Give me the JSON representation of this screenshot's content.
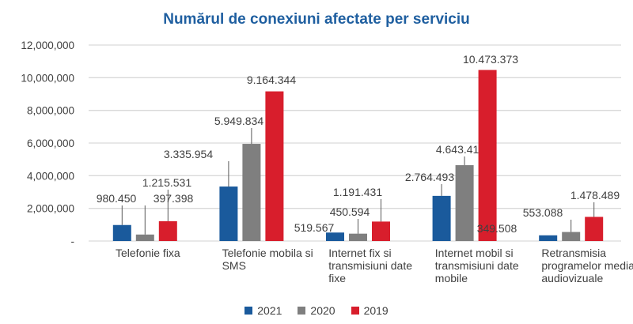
{
  "chart_data": {
    "type": "bar",
    "title": "Numărul de conexiuni afectate per serviciu",
    "categories": [
      "Telefonie fixa",
      "Telefonie mobila si SMS",
      "Internet fix si transmisiuni date fixe",
      "Internet mobil si transmisiuni date mobile",
      "Retransmisia programelor media audiovizuale"
    ],
    "category_label_lines": [
      [
        "Telefonie fixa"
      ],
      [
        "Telefonie mobila si",
        "SMS"
      ],
      [
        "Internet fix si",
        "transmisiuni date",
        "fixe"
      ],
      [
        "Internet mobil si",
        "transmisiuni date",
        "mobile"
      ],
      [
        "Retransmisia",
        "programelor media",
        "audiovizuale"
      ]
    ],
    "series": [
      {
        "name": "2021",
        "color": "#1a5a9c",
        "values": [
          980450,
          3335954,
          519567,
          2764493,
          349508
        ],
        "labels": [
          "980.450",
          "3.335.954",
          "519.567",
          "2.764.493",
          "349.508"
        ]
      },
      {
        "name": "2020",
        "color": "#7f7f7f",
        "values": [
          397398,
          5949834,
          450594,
          4643419,
          553088
        ],
        "labels": [
          "397.398",
          "5.949.834",
          "450.594",
          "4.643.419",
          "553.088"
        ]
      },
      {
        "name": "2019",
        "color": "#d81e2c",
        "values": [
          1215531,
          9164344,
          1191431,
          10473373,
          1478489
        ],
        "labels": [
          "1.215.531",
          "9.164.344",
          "1.191.431",
          "10.473.373",
          "1.478.489"
        ]
      }
    ],
    "ylim": [
      0,
      12000000
    ],
    "yticks": [
      0,
      2000000,
      4000000,
      6000000,
      8000000,
      10000000,
      12000000
    ],
    "ytick_labels": [
      "-",
      "2,000,000",
      "4,000,000",
      "6,000,000",
      "8,000,000",
      "10,000,000",
      "12,000,000"
    ],
    "grid": true,
    "legend": "bottom"
  }
}
